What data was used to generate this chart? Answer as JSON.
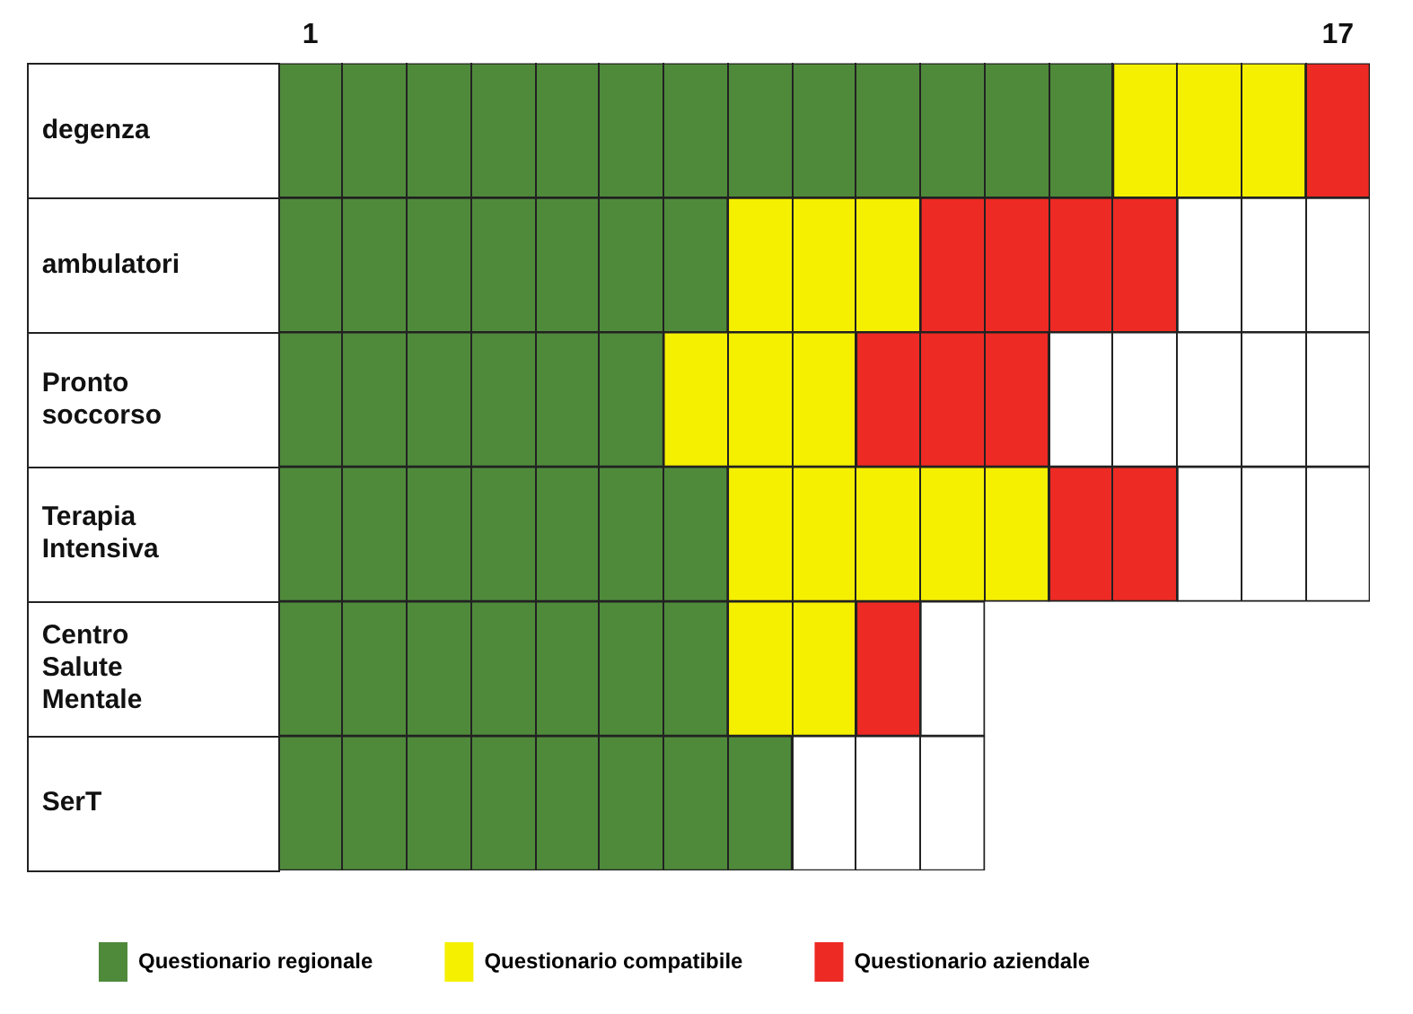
{
  "chart_data": {
    "type": "bar",
    "orientation": "horizontal",
    "stacked": true,
    "categories": [
      "degenza",
      "ambulatori",
      "Pronto soccorso",
      "Terapia Intensiva",
      "Centro Salute Mentale",
      "SerT"
    ],
    "series": [
      {
        "name": "Questionario regionale",
        "color": "#4f8a3b",
        "values": [
          13,
          7,
          6,
          7,
          7,
          8
        ]
      },
      {
        "name": "Questionario compatibile",
        "color": "#f5f000",
        "values": [
          3,
          3,
          3,
          5,
          2,
          0
        ]
      },
      {
        "name": "Questionario aziendale",
        "color": "#ee2a24",
        "values": [
          1,
          4,
          3,
          2,
          1,
          0
        ]
      },
      {
        "color": "#ffffff",
        "values": [
          0,
          3,
          5,
          3,
          1,
          3
        ]
      }
    ],
    "xlim": [
      0,
      17
    ],
    "xticks": [
      {
        "value": 0.5,
        "label": "1"
      },
      {
        "value": 16.5,
        "label": "17"
      }
    ],
    "legend": "bottom"
  }
}
